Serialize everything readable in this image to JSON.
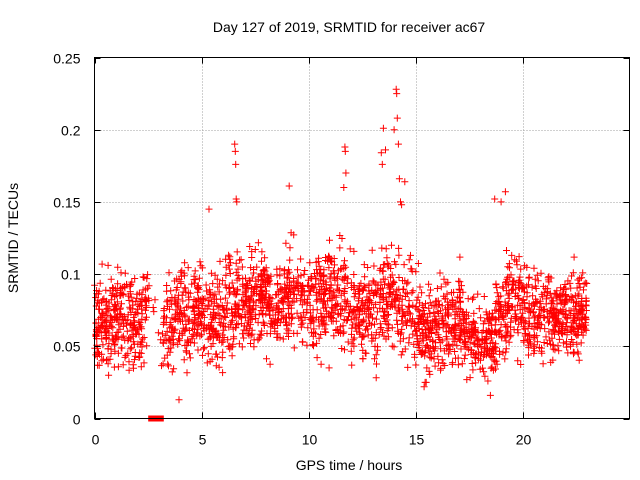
{
  "chart_data": {
    "type": "scatter",
    "title": "Day 127 of 2019, SRMTID for receiver ac67",
    "xlabel": "GPS time / hours",
    "ylabel": "SRMTID / TECUs",
    "xlim": [
      0,
      25
    ],
    "ylim": [
      0,
      0.25
    ],
    "xticks": [
      0,
      5,
      10,
      15,
      20
    ],
    "xtick_labels": [
      "0",
      "5",
      "10",
      "15",
      "20"
    ],
    "yticks": [
      0,
      0.05,
      0.1,
      0.15,
      0.2,
      0.25
    ],
    "ytick_labels": [
      "0",
      "0.05",
      "0.1",
      "0.15",
      "0.2",
      "0.25"
    ],
    "grid": true,
    "marker": "plus",
    "series_color": "#ff0000",
    "axis_color": "#000000",
    "grid_color": "#a0a0a0",
    "generated_density_note": "dense cloud of ~3000 points; summarized by per-interval envelope below",
    "envelope": {
      "x": [
        0.0,
        0.5,
        1.0,
        1.5,
        2.0,
        2.5,
        3.0,
        3.5,
        4.0,
        4.5,
        5.0,
        5.5,
        6.0,
        6.5,
        7.0,
        7.5,
        8.0,
        8.5,
        9.0,
        9.5,
        10.0,
        10.5,
        11.0,
        11.5,
        12.0,
        12.5,
        13.0,
        13.5,
        14.0,
        14.5,
        15.0,
        15.5,
        16.0,
        16.5,
        17.0,
        17.5,
        18.0,
        18.5,
        19.0,
        19.5,
        20.0,
        20.5,
        21.0,
        21.5,
        22.0,
        22.5,
        23.0
      ],
      "center": [
        0.068,
        0.065,
        0.075,
        0.07,
        0.062,
        0.078,
        0.06,
        0.065,
        0.075,
        0.072,
        0.075,
        0.07,
        0.072,
        0.078,
        0.082,
        0.085,
        0.082,
        0.08,
        0.085,
        0.08,
        0.078,
        0.082,
        0.085,
        0.08,
        0.075,
        0.07,
        0.075,
        0.08,
        0.085,
        0.075,
        0.07,
        0.065,
        0.062,
        0.065,
        0.068,
        0.06,
        0.058,
        0.055,
        0.07,
        0.085,
        0.078,
        0.072,
        0.075,
        0.07,
        0.072,
        0.07,
        0.075
      ],
      "spread": [
        0.025,
        0.03,
        0.028,
        0.03,
        0.025,
        0.03,
        0.022,
        0.028,
        0.03,
        0.028,
        0.028,
        0.03,
        0.03,
        0.032,
        0.03,
        0.03,
        0.028,
        0.03,
        0.03,
        0.03,
        0.028,
        0.03,
        0.03,
        0.03,
        0.03,
        0.028,
        0.03,
        0.032,
        0.032,
        0.028,
        0.028,
        0.026,
        0.025,
        0.026,
        0.026,
        0.024,
        0.022,
        0.022,
        0.03,
        0.03,
        0.028,
        0.028,
        0.03,
        0.026,
        0.026,
        0.026,
        0.024
      ],
      "x_start": 0.0,
      "x_end": 23.0
    },
    "notable_points": [
      {
        "x": 6.55,
        "y": 0.19
      },
      {
        "x": 6.58,
        "y": 0.185
      },
      {
        "x": 6.6,
        "y": 0.176
      },
      {
        "x": 6.62,
        "y": 0.152
      },
      {
        "x": 6.65,
        "y": 0.15
      },
      {
        "x": 9.1,
        "y": 0.161
      },
      {
        "x": 11.7,
        "y": 0.188
      },
      {
        "x": 11.72,
        "y": 0.185
      },
      {
        "x": 11.75,
        "y": 0.17
      },
      {
        "x": 11.65,
        "y": 0.16
      },
      {
        "x": 13.5,
        "y": 0.201
      },
      {
        "x": 13.4,
        "y": 0.184
      },
      {
        "x": 13.45,
        "y": 0.176
      },
      {
        "x": 13.6,
        "y": 0.186
      },
      {
        "x": 14.1,
        "y": 0.228
      },
      {
        "x": 14.12,
        "y": 0.225
      },
      {
        "x": 14.15,
        "y": 0.208
      },
      {
        "x": 14.0,
        "y": 0.2
      },
      {
        "x": 14.2,
        "y": 0.19
      },
      {
        "x": 14.25,
        "y": 0.166
      },
      {
        "x": 14.5,
        "y": 0.164
      },
      {
        "x": 14.3,
        "y": 0.15
      },
      {
        "x": 14.35,
        "y": 0.148
      },
      {
        "x": 19.2,
        "y": 0.157
      },
      {
        "x": 18.7,
        "y": 0.152
      },
      {
        "x": 19.0,
        "y": 0.15
      },
      {
        "x": 5.35,
        "y": 0.145
      },
      {
        "x": 3.95,
        "y": 0.013
      },
      {
        "x": 18.5,
        "y": 0.016
      },
      {
        "x": 15.4,
        "y": 0.022
      },
      {
        "x": 15.5,
        "y": 0.025
      }
    ],
    "zero_markers": {
      "x": [
        2.65,
        2.75,
        2.85,
        2.95,
        3.1
      ],
      "y": [
        0,
        0,
        0,
        0,
        0
      ],
      "marker": "square"
    }
  }
}
